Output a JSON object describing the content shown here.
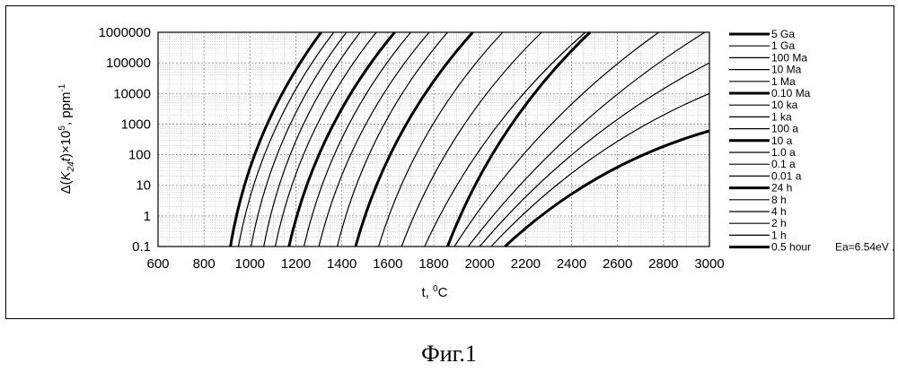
{
  "chart_data": {
    "type": "line",
    "xlabel": "t, ⁰C",
    "ylabel": "Δ(K24t)×10⁵, ppm⁻¹",
    "ylabel_parts": {
      "a": "Δ(",
      "b": "K",
      "c": "24",
      "d": "t",
      "e": ")×10",
      "f": "5",
      "g": ", ppm",
      "h": "-1"
    },
    "xlabel_parts": {
      "a": "t, ",
      "b": "0",
      "c": "C"
    },
    "x_range": [
      600,
      3000
    ],
    "y_scale": "log",
    "y_range": [
      0.1,
      1000000
    ],
    "x_ticks": [
      "600",
      "800",
      "1000",
      "1200",
      "1400",
      "1600",
      "1800",
      "2000",
      "2200",
      "2400",
      "2600",
      "2800",
      "3000"
    ],
    "y_ticks": [
      "1000000",
      "100000",
      "10000",
      "1000",
      "100",
      "10",
      "1",
      "0.1"
    ],
    "grid": true,
    "legend_position": "right",
    "legend_note": "Ea=6.54eV .",
    "series": [
      {
        "name": "5 Ga",
        "bold": true,
        "points": [
          [
            915,
            0.1
          ],
          [
            1310,
            1000000
          ]
        ]
      },
      {
        "name": "1 Ga",
        "bold": false,
        "points": [
          [
            950,
            0.1
          ],
          [
            1365,
            1000000
          ]
        ]
      },
      {
        "name": "100 Ma",
        "bold": false,
        "points": [
          [
            1005,
            0.1
          ],
          [
            1420,
            1000000
          ]
        ]
      },
      {
        "name": "10 Ma",
        "bold": false,
        "points": [
          [
            1060,
            0.1
          ],
          [
            1480,
            1000000
          ]
        ]
      },
      {
        "name": "1 Ma",
        "bold": false,
        "points": [
          [
            1110,
            0.1
          ],
          [
            1550,
            1000000
          ]
        ]
      },
      {
        "name": "0.10 Ma",
        "bold": true,
        "points": [
          [
            1170,
            0.1
          ],
          [
            1630,
            1000000
          ]
        ]
      },
      {
        "name": "10 ka",
        "bold": false,
        "points": [
          [
            1235,
            0.1
          ],
          [
            1700,
            1000000
          ]
        ]
      },
      {
        "name": "1 ka",
        "bold": false,
        "points": [
          [
            1300,
            0.1
          ],
          [
            1780,
            1000000
          ]
        ]
      },
      {
        "name": "100 a",
        "bold": false,
        "points": [
          [
            1380,
            0.1
          ],
          [
            1860,
            1000000
          ]
        ]
      },
      {
        "name": "10 a",
        "bold": true,
        "points": [
          [
            1460,
            0.1
          ],
          [
            1970,
            1000000
          ]
        ]
      },
      {
        "name": "1.0 a",
        "bold": false,
        "points": [
          [
            1560,
            0.1
          ],
          [
            2100,
            1000000
          ]
        ]
      },
      {
        "name": "0.1 a",
        "bold": false,
        "points": [
          [
            1660,
            0.1
          ],
          [
            2270,
            1000000
          ]
        ]
      },
      {
        "name": "0.01 a",
        "bold": false,
        "points": [
          [
            1760,
            0.1
          ],
          [
            2460,
            1000000
          ]
        ]
      },
      {
        "name": "24 h",
        "bold": true,
        "points": [
          [
            1860,
            0.1
          ],
          [
            2480,
            1000000
          ]
        ]
      },
      {
        "name": "8 h",
        "bold": false,
        "points": [
          [
            1890,
            0.1
          ],
          [
            2780,
            1000000
          ]
        ]
      },
      {
        "name": "4 h",
        "bold": false,
        "points": [
          [
            1950,
            0.1
          ],
          [
            2980,
            1000000
          ]
        ]
      },
      {
        "name": "2 h",
        "bold": false,
        "points": [
          [
            2000,
            0.1
          ],
          [
            3000,
            100000
          ]
        ]
      },
      {
        "name": "1 h",
        "bold": false,
        "points": [
          [
            2050,
            0.1
          ],
          [
            3000,
            10000
          ]
        ]
      },
      {
        "name": "0.5 hour",
        "bold": true,
        "points": [
          [
            2110,
            0.1
          ],
          [
            3000,
            600
          ]
        ]
      }
    ]
  },
  "caption": "Фиг.1"
}
